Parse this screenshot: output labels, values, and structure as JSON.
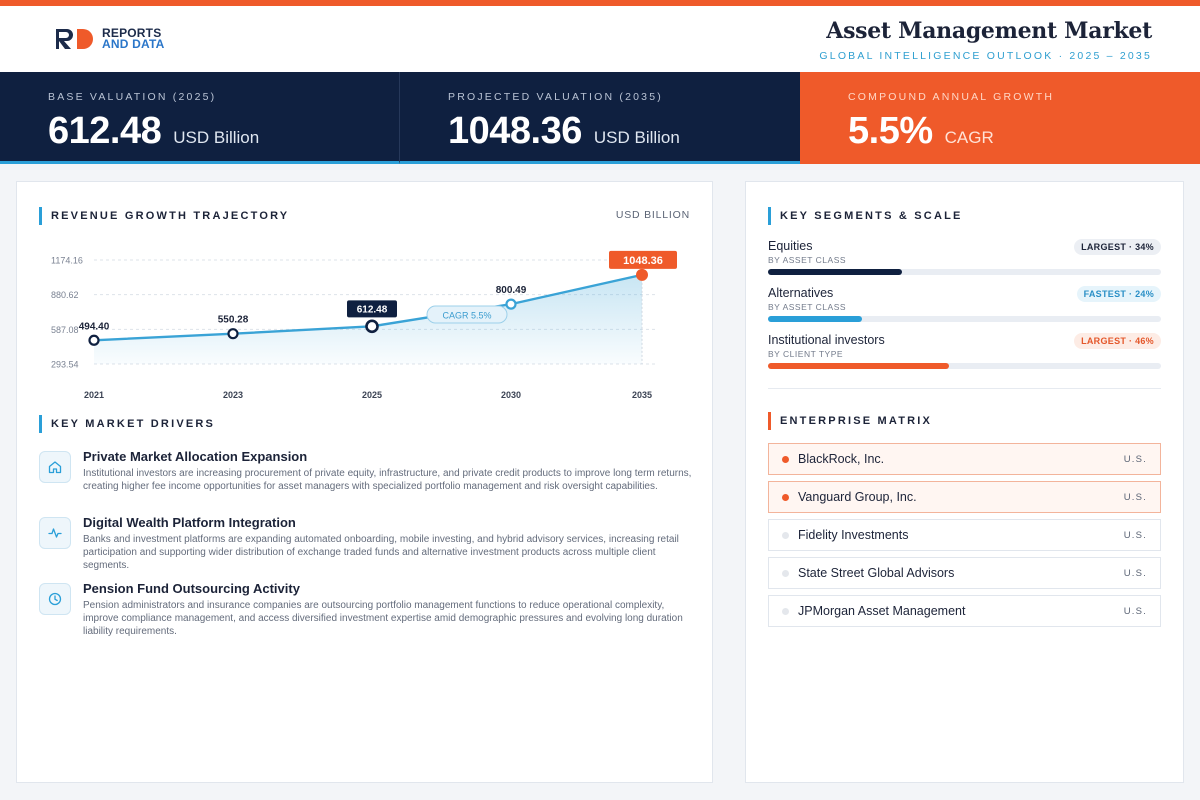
{
  "brand": {
    "logo_line1": "REPORTS",
    "logo_line2": "AND DATA",
    "accent": "#ef5a2a",
    "navy": "#0f2040",
    "blue": "#2a9fd8"
  },
  "header": {
    "title": "Asset Management Market",
    "subtitle": "GLOBAL INTELLIGENCE OUTLOOK · 2025 – 2035"
  },
  "kpis": [
    {
      "label": "BASE VALUATION (2025)",
      "value": "612.48",
      "unit": "USD Billion"
    },
    {
      "label": "PROJECTED VALUATION (2035)",
      "value": "1048.36",
      "unit": "USD Billion"
    },
    {
      "label": "COMPOUND ANNUAL GROWTH",
      "value": "5.5%",
      "unit": "CAGR"
    }
  ],
  "revenue": {
    "title": "REVENUE GROWTH TRAJECTORY",
    "unit": "USD BILLION"
  },
  "chart_data": {
    "type": "area",
    "categories": [
      "2021",
      "2023",
      "2025",
      "2030",
      "2035"
    ],
    "values": [
      494.4,
      550.28,
      612.48,
      800.49,
      1048.36
    ],
    "value_labels": [
      "494.40",
      "550.28",
      "612.48",
      "800.49",
      "1048.36"
    ],
    "y_ticks": [
      "293.54",
      "587.08",
      "880.62",
      "1174.16"
    ],
    "y_tick_values": [
      293.54,
      587.08,
      880.62,
      1174.16
    ],
    "ylim": [
      293.54,
      1174.16
    ],
    "highlight_base_index": 2,
    "highlight_end_index": 4,
    "annotation": "CAGR 5.5%",
    "grid": true,
    "line_color": "#3aa3d6",
    "end_color": "#ef5a2a"
  },
  "drivers": {
    "title": "KEY MARKET DRIVERS",
    "items": [
      {
        "icon": "home-icon",
        "title": "Private Market Allocation Expansion",
        "desc": "Institutional investors are increasing procurement of private equity, infrastructure, and private credit products to improve long term returns, creating higher fee income opportunities for asset managers with specialized portfolio management and risk oversight capabilities."
      },
      {
        "icon": "activity-icon",
        "title": "Digital Wealth Platform Integration",
        "desc": "Banks and investment platforms are expanding automated onboarding, mobile investing, and hybrid advisory services, increasing retail participation and supporting wider distribution of exchange traded funds and alternative investment products across multiple client segments."
      },
      {
        "icon": "clock-icon",
        "title": "Pension Fund Outsourcing Activity",
        "desc": "Pension administrators and insurance companies are outsourcing portfolio management functions to reduce operational complexity, improve compliance management, and access diversified investment expertise amid demographic pressures and evolving long duration liability requirements."
      }
    ]
  },
  "segments": {
    "title": "KEY SEGMENTS & SCALE",
    "items": [
      {
        "name": "Equities",
        "sub": "BY ASSET CLASS",
        "badge": "LARGEST · 34%",
        "share": 0.34,
        "bar_color": "#0f2040",
        "badge_bg": "#eceff4",
        "badge_color": "#1c2338"
      },
      {
        "name": "Alternatives",
        "sub": "BY ASSET CLASS",
        "badge": "FASTEST · 24%",
        "share": 0.24,
        "bar_color": "#2a9fd8",
        "badge_bg": "#e6f4fb",
        "badge_color": "#2a8fc6"
      },
      {
        "name": "Institutional investors",
        "sub": "BY CLIENT TYPE",
        "badge": "LARGEST · 46%",
        "share": 0.46,
        "bar_color": "#ef5a2a",
        "badge_bg": "#fdece5",
        "badge_color": "#e4572a"
      }
    ]
  },
  "matrix": {
    "title": "ENTERPRISE MATRIX",
    "companies": [
      {
        "name": "BlackRock, Inc.",
        "country": "U.S.",
        "highlight": true
      },
      {
        "name": "Vanguard Group, Inc.",
        "country": "U.S.",
        "highlight": true
      },
      {
        "name": "Fidelity Investments",
        "country": "U.S.",
        "highlight": false
      },
      {
        "name": "State Street Global Advisors",
        "country": "U.S.",
        "highlight": false
      },
      {
        "name": "JPMorgan Asset Management",
        "country": "U.S.",
        "highlight": false
      }
    ]
  }
}
